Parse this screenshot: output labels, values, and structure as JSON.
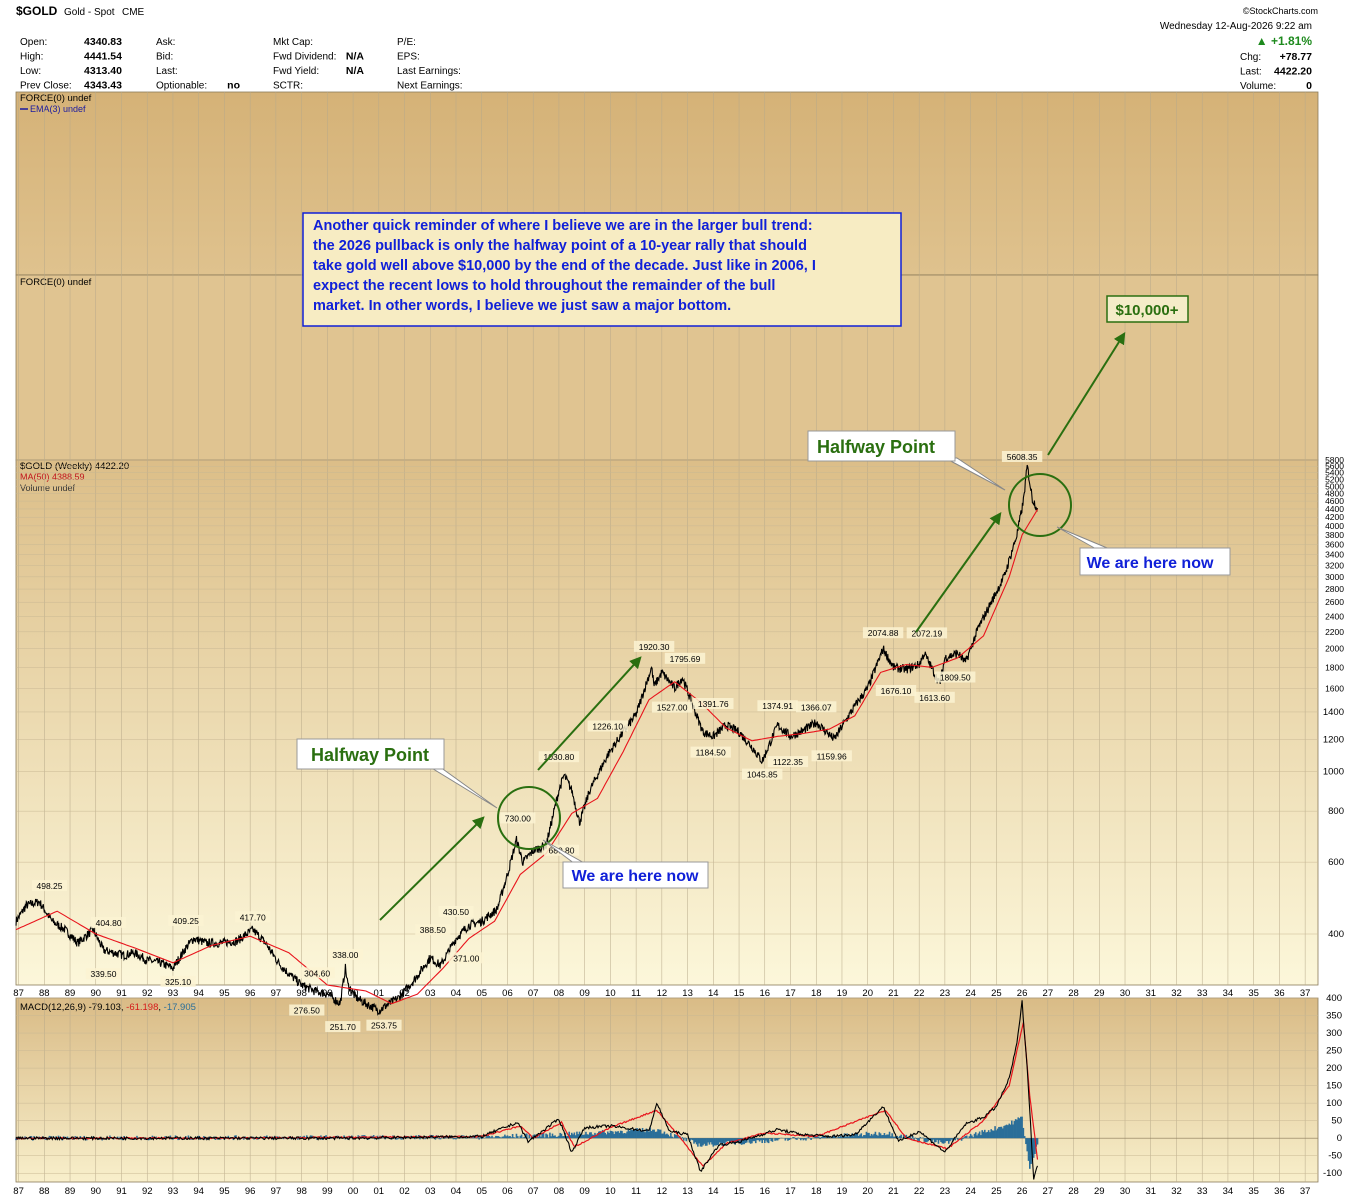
{
  "header": {
    "symbol": "$GOLD",
    "name": "Gold - Spot",
    "exchange": "CME",
    "date": "Wednesday  12-Aug-2026  9:22 am",
    "copyright": "©StockCharts.com",
    "quote_left": [
      {
        "label": "Open:",
        "value": "4340.83"
      },
      {
        "label": "High:",
        "value": "4441.54"
      },
      {
        "label": "Low:",
        "value": "4313.40"
      },
      {
        "label": "Prev Close:",
        "value": "4343.43"
      }
    ],
    "quote_mid1": [
      {
        "label": "Ask:",
        "value": ""
      },
      {
        "label": "Bid:",
        "value": ""
      },
      {
        "label": "Last:",
        "value": ""
      },
      {
        "label": "Optionable:",
        "value": "no"
      }
    ],
    "quote_mid2": [
      {
        "label": "Mkt Cap:",
        "value": ""
      },
      {
        "label": "Fwd Dividend:",
        "value": "N/A"
      },
      {
        "label": "Fwd Yield:",
        "value": "N/A"
      },
      {
        "label": "SCTR:",
        "value": ""
      }
    ],
    "quote_mid3": [
      {
        "label": "P/E:",
        "value": ""
      },
      {
        "label": "EPS:",
        "value": ""
      },
      {
        "label": "Last Earnings:",
        "value": ""
      },
      {
        "label": "Next Earnings:",
        "value": ""
      }
    ],
    "change_pct": "▲ +1.81%",
    "quote_right": [
      {
        "label": "Chg:",
        "value": "+78.77"
      },
      {
        "label": "Last:",
        "value": "4422.20"
      },
      {
        "label": "Volume:",
        "value": "0"
      }
    ]
  },
  "panels": {
    "force_top_1": "FORCE(0) undef",
    "force_top_2": "EMA(3) undef",
    "force_2": "FORCE(0) undef",
    "price_1": "$GOLD (Weekly) 4422.20",
    "price_2": "MA(50) 4388.59",
    "price_3": "Volume undef",
    "macd_label": "MACD(12,26,9)",
    "macd_v1": "-79.103",
    "macd_v2": "-61.198",
    "macd_v3": "-17.905"
  },
  "annotations": {
    "note": [
      "Another quick reminder of where I believe we are in the larger bull trend:",
      "the 2026 pullback is only the halfway point of a 10-year rally that should",
      "take gold well above $10,000 by the end of the decade. Just like in 2006, I",
      "expect the recent lows to hold throughout the remainder of the bull",
      "market. In other words, I believe we just saw a major bottom."
    ],
    "target": "$10,000+",
    "halfway_1": "Halfway Point",
    "here_1": "We are here now",
    "halfway_2": "Halfway Point",
    "here_2": "We are here now"
  },
  "colors": {
    "bg_top": "#d8b67a",
    "bg_bottom": "#fbf6d8",
    "price": "#000000",
    "ma": "#e8141c",
    "macd": "#000000",
    "signal": "#e8141c",
    "histogram": "#2a6e99",
    "annot_green": "#2a6f10",
    "annot_blue": "#1020d8"
  },
  "chart_data": [
    {
      "type": "line",
      "title": "$GOLD (Weekly) 4422.20",
      "scale": "log",
      "ylim": [
        300,
        5800
      ],
      "y_ticks": [
        400,
        600,
        800,
        1000,
        1200,
        1400,
        1600,
        1800,
        2000,
        2200,
        2400,
        2600,
        2800,
        3000,
        3200,
        3400,
        3600,
        3800,
        4000,
        4200,
        4400,
        4600,
        4800,
        5000,
        5200,
        5400,
        5600,
        5800
      ],
      "x_ticks": [
        "87",
        "88",
        "89",
        "90",
        "91",
        "92",
        "93",
        "94",
        "95",
        "96",
        "97",
        "98",
        "99",
        "00",
        "01",
        "02",
        "03",
        "04",
        "05",
        "06",
        "07",
        "08",
        "09",
        "10",
        "11",
        "12",
        "13",
        "14",
        "15",
        "16",
        "17",
        "18",
        "19",
        "20",
        "21",
        "22",
        "23",
        "24",
        "25",
        "26",
        "27",
        "28",
        "29",
        "30",
        "31",
        "32",
        "33",
        "34",
        "35",
        "36",
        "37"
      ],
      "xlim": [
        1986.9,
        2037.5
      ],
      "series": [
        {
          "name": "$GOLD",
          "x": [
            1986.9,
            1987.3,
            1987.8,
            1988.3,
            1988.8,
            1989.3,
            1989.9,
            1990.3,
            1990.7,
            1991.1,
            1991.5,
            1992.0,
            1992.5,
            1993.0,
            1993.5,
            1993.8,
            1994.3,
            1994.8,
            1995.5,
            1996.1,
            1996.6,
            1997.1,
            1997.5,
            1998.0,
            1998.5,
            1999.0,
            1999.5,
            1999.7,
            1999.8,
            2000.1,
            2000.5,
            2001.0,
            2001.4,
            2001.8,
            2002.4,
            2003.0,
            2003.4,
            2004.0,
            2004.5,
            2005.0,
            2005.6,
            2006.0,
            2006.35,
            2006.6,
            2007.0,
            2007.5,
            2008.0,
            2008.2,
            2008.5,
            2008.8,
            2009.2,
            2009.9,
            2010.5,
            2011.0,
            2011.6,
            2011.7,
            2012.0,
            2012.5,
            2012.8,
            2013.3,
            2013.6,
            2014.0,
            2014.5,
            2015.0,
            2015.5,
            2015.9,
            2016.5,
            2017.0,
            2017.5,
            2018.0,
            2018.7,
            2019.0,
            2019.6,
            2020.0,
            2020.6,
            2021.0,
            2021.5,
            2022.0,
            2022.2,
            2022.8,
            2023.0,
            2023.5,
            2023.8,
            2024.3,
            2024.8,
            2025.3,
            2025.8,
            2026.05,
            2026.2,
            2026.4,
            2026.6
          ],
          "y": [
            430,
            470,
            480,
            430,
            410,
            380,
            410,
            365,
            360,
            355,
            360,
            345,
            340,
            330,
            370,
            390,
            380,
            380,
            385,
            410,
            380,
            340,
            320,
            300,
            290,
            285,
            270,
            330,
            300,
            280,
            270,
            260,
            270,
            280,
            310,
            350,
            335,
            390,
            420,
            430,
            460,
            560,
            680,
            600,
            640,
            660,
            900,
            980,
            900,
            750,
            900,
            1100,
            1250,
            1380,
            1800,
            1620,
            1750,
            1600,
            1700,
            1400,
            1250,
            1220,
            1300,
            1250,
            1150,
            1060,
            1300,
            1220,
            1260,
            1320,
            1200,
            1290,
            1480,
            1600,
            2000,
            1800,
            1780,
            1830,
            1950,
            1640,
            1900,
            1950,
            1850,
            2250,
            2600,
            3000,
            3800,
            4600,
            5608,
            4650,
            4422
          ]
        },
        {
          "name": "MA(50)",
          "x": [
            1986.9,
            1988.5,
            1990.0,
            1991.5,
            1993.0,
            1994.5,
            1996.0,
            1997.5,
            1999.0,
            2000.5,
            2001.5,
            2002.5,
            2003.5,
            2004.5,
            2005.5,
            2006.5,
            2007.5,
            2008.5,
            2009.5,
            2010.5,
            2011.5,
            2012.5,
            2013.5,
            2014.5,
            2015.5,
            2016.5,
            2017.5,
            2018.5,
            2019.5,
            2020.5,
            2021.5,
            2022.5,
            2023.5,
            2024.5,
            2025.5,
            2026.0,
            2026.6
          ],
          "y": [
            410,
            455,
            400,
            370,
            340,
            375,
            395,
            360,
            300,
            290,
            270,
            285,
            330,
            390,
            430,
            560,
            630,
            790,
            860,
            1120,
            1500,
            1660,
            1480,
            1280,
            1190,
            1220,
            1240,
            1270,
            1370,
            1750,
            1830,
            1800,
            1900,
            2150,
            3000,
            3800,
            4388
          ]
        }
      ],
      "data_labels": [
        {
          "x": 1988.2,
          "y": 498.25,
          "text": "498.25"
        },
        {
          "x": 1990.5,
          "y": 404.8,
          "text": "404.80"
        },
        {
          "x": 1990.3,
          "y": 339.5,
          "text": "339.50"
        },
        {
          "x": 1993.5,
          "y": 409.25,
          "text": "409.25"
        },
        {
          "x": 1993.2,
          "y": 325.1,
          "text": "325.10"
        },
        {
          "x": 1996.1,
          "y": 417.7,
          "text": "417.70"
        },
        {
          "x": 1998.6,
          "y": 304.6,
          "text": "304.60"
        },
        {
          "x": 1998.2,
          "y": 276.5,
          "text": "276.50"
        },
        {
          "x": 1999.7,
          "y": 338.0,
          "text": "338.00"
        },
        {
          "x": 1999.6,
          "y": 251.7,
          "text": "251.70"
        },
        {
          "x": 2001.2,
          "y": 253.75,
          "text": "253.75"
        },
        {
          "x": 2003.1,
          "y": 388.5,
          "text": "388.50"
        },
        {
          "x": 2004.0,
          "y": 430.5,
          "text": "430.50"
        },
        {
          "x": 2004.4,
          "y": 371.0,
          "text": "371.00"
        },
        {
          "x": 2006.4,
          "y": 730.0,
          "text": "730.00"
        },
        {
          "x": 2008.1,
          "y": 680.8,
          "text": "680.80"
        },
        {
          "x": 2008.0,
          "y": 1030.8,
          "text": "1030.80"
        },
        {
          "x": 2009.9,
          "y": 1226.1,
          "text": "1226.10"
        },
        {
          "x": 2011.7,
          "y": 1920.3,
          "text": "1920.30"
        },
        {
          "x": 2012.9,
          "y": 1795.69,
          "text": "1795.69"
        },
        {
          "x": 2012.4,
          "y": 1527.0,
          "text": "1527.00"
        },
        {
          "x": 2014.0,
          "y": 1391.76,
          "text": "1391.76"
        },
        {
          "x": 2013.9,
          "y": 1184.5,
          "text": "1184.50"
        },
        {
          "x": 2016.5,
          "y": 1374.91,
          "text": "1374.91"
        },
        {
          "x": 2018.0,
          "y": 1366.07,
          "text": "1366.07"
        },
        {
          "x": 2015.9,
          "y": 1045.85,
          "text": "1045.85"
        },
        {
          "x": 2016.9,
          "y": 1122.35,
          "text": "1122.35"
        },
        {
          "x": 2018.6,
          "y": 1159.96,
          "text": "1159.96"
        },
        {
          "x": 2020.6,
          "y": 2074.88,
          "text": "2074.88"
        },
        {
          "x": 2022.3,
          "y": 2072.19,
          "text": "2072.19"
        },
        {
          "x": 2021.1,
          "y": 1676.1,
          "text": "1676.10"
        },
        {
          "x": 2022.6,
          "y": 1613.6,
          "text": "1613.60"
        },
        {
          "x": 2023.4,
          "y": 1809.5,
          "text": "1809.50"
        },
        {
          "x": 2026.0,
          "y": 5608.35,
          "text": "5608.35"
        }
      ]
    },
    {
      "type": "line",
      "title": "MACD(12,26,9)",
      "ylim": [
        -125,
        400
      ],
      "y_ticks": [
        400,
        350,
        300,
        250,
        200,
        150,
        100,
        50,
        0,
        -50,
        -100
      ],
      "series": [
        {
          "name": "MACD",
          "x": [
            1986.9,
            1990,
            1995,
            2000,
            2005,
            2006.4,
            2006.8,
            2008.0,
            2008.5,
            2009,
            2010,
            2011.5,
            2011.8,
            2012.3,
            2013.0,
            2013.5,
            2014.2,
            2015,
            2016.5,
            2017.5,
            2018.5,
            2019.5,
            2020.6,
            2021.2,
            2022,
            2023.0,
            2023.8,
            2024.5,
            2025.0,
            2025.5,
            2025.8,
            2026.0,
            2026.2,
            2026.45,
            2026.6
          ],
          "y": [
            0,
            0,
            0,
            0,
            5,
            45,
            -10,
            55,
            -40,
            30,
            35,
            20,
            100,
            20,
            10,
            -95,
            -20,
            -10,
            25,
            10,
            5,
            10,
            90,
            -10,
            20,
            -40,
            40,
            60,
            90,
            170,
            270,
            390,
            200,
            -115,
            -79
          ]
        },
        {
          "name": "Signal",
          "x": [
            1986.9,
            1995,
            2005,
            2006.5,
            2007,
            2008.1,
            2008.6,
            2010,
            2011.8,
            2012.5,
            2013.6,
            2014.5,
            2016,
            2018,
            2020.7,
            2021.5,
            2023.1,
            2024.5,
            2025.5,
            2026.05,
            2026.3,
            2026.6
          ],
          "y": [
            0,
            0,
            5,
            35,
            0,
            45,
            -25,
            30,
            80,
            20,
            -80,
            -15,
            15,
            5,
            80,
            0,
            -30,
            50,
            150,
            330,
            120,
            -61
          ]
        },
        {
          "name": "Histogram",
          "x": [
            1986.9,
            2005,
            2008,
            2011.8,
            2013.5,
            2020.7,
            2023,
            2025.5,
            2026.0,
            2026.3,
            2026.6
          ],
          "y": [
            0,
            3,
            10,
            25,
            -20,
            15,
            -15,
            40,
            60,
            -90,
            -18
          ]
        }
      ]
    }
  ]
}
